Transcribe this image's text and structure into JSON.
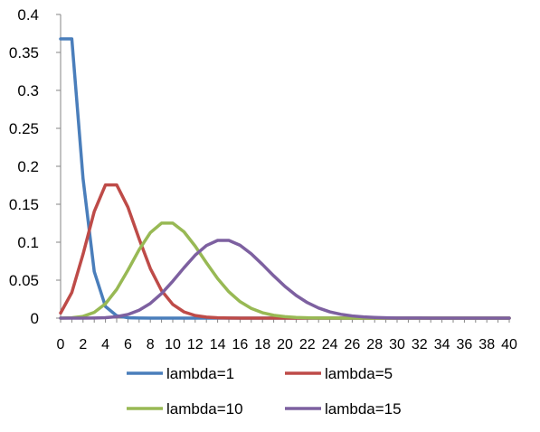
{
  "chart_data": {
    "type": "line",
    "title": "",
    "xlabel": "",
    "ylabel": "",
    "x": [
      0,
      1,
      2,
      3,
      4,
      5,
      6,
      7,
      8,
      9,
      10,
      11,
      12,
      13,
      14,
      15,
      16,
      17,
      18,
      19,
      20,
      21,
      22,
      23,
      24,
      25,
      26,
      27,
      28,
      29,
      30,
      31,
      32,
      33,
      34,
      35,
      36,
      37,
      38,
      39,
      40
    ],
    "xlim": [
      0,
      40
    ],
    "ylim": [
      0,
      0.4
    ],
    "x_ticks": [
      "0",
      "2",
      "4",
      "6",
      "8",
      "10",
      "12",
      "14",
      "16",
      "18",
      "20",
      "22",
      "24",
      "26",
      "28",
      "30",
      "32",
      "34",
      "36",
      "38",
      "40"
    ],
    "y_ticks": [
      "0",
      "0.05",
      "0.1",
      "0.15",
      "0.2",
      "0.25",
      "0.3",
      "0.35",
      "0.4"
    ],
    "grid": false,
    "legend_position": "bottom",
    "series": [
      {
        "name": "lambda=1",
        "color": "#4A7EBB",
        "values": [
          0.3679,
          0.3679,
          0.1839,
          0.0613,
          0.0153,
          0.0031,
          0.0005,
          0.0001,
          0,
          0,
          0,
          0,
          0,
          0,
          0,
          0,
          0,
          0,
          0,
          0,
          0,
          0,
          0,
          0,
          0,
          0,
          0,
          0,
          0,
          0,
          0,
          0,
          0,
          0,
          0,
          0,
          0,
          0,
          0,
          0,
          0
        ]
      },
      {
        "name": "lambda=5",
        "color": "#BE4B48",
        "values": [
          0.0067,
          0.0337,
          0.0842,
          0.1404,
          0.1755,
          0.1755,
          0.1462,
          0.1044,
          0.0653,
          0.0363,
          0.0181,
          0.0082,
          0.0034,
          0.0013,
          0.0005,
          0.0002,
          0.0,
          0,
          0,
          0,
          0,
          0,
          0,
          0,
          0,
          0,
          0,
          0,
          0,
          0,
          0,
          0,
          0,
          0,
          0,
          0,
          0,
          0,
          0,
          0,
          0
        ]
      },
      {
        "name": "lambda=10",
        "color": "#98B954",
        "values": [
          0.0,
          0.0005,
          0.0023,
          0.0076,
          0.0189,
          0.0378,
          0.0631,
          0.0901,
          0.1126,
          0.1251,
          0.1251,
          0.1137,
          0.0948,
          0.0729,
          0.0521,
          0.0347,
          0.0217,
          0.0128,
          0.0071,
          0.0037,
          0.0019,
          0.0009,
          0.0004,
          0.0002,
          0.0001,
          0,
          0,
          0,
          0,
          0,
          0,
          0,
          0,
          0,
          0,
          0,
          0,
          0,
          0,
          0,
          0
        ]
      },
      {
        "name": "lambda=15",
        "color": "#7D60A0",
        "values": [
          0,
          0,
          0,
          0.0002,
          0.0006,
          0.0019,
          0.0048,
          0.0104,
          0.0194,
          0.0324,
          0.0486,
          0.0663,
          0.0829,
          0.0956,
          0.1024,
          0.1024,
          0.096,
          0.0847,
          0.0706,
          0.0557,
          0.0418,
          0.0299,
          0.0204,
          0.0133,
          0.0083,
          0.005,
          0.0029,
          0.0016,
          0.0009,
          0.0004,
          0.0002,
          0.0001,
          0.0001,
          0,
          0,
          0,
          0,
          0,
          0,
          0,
          0
        ]
      }
    ]
  }
}
